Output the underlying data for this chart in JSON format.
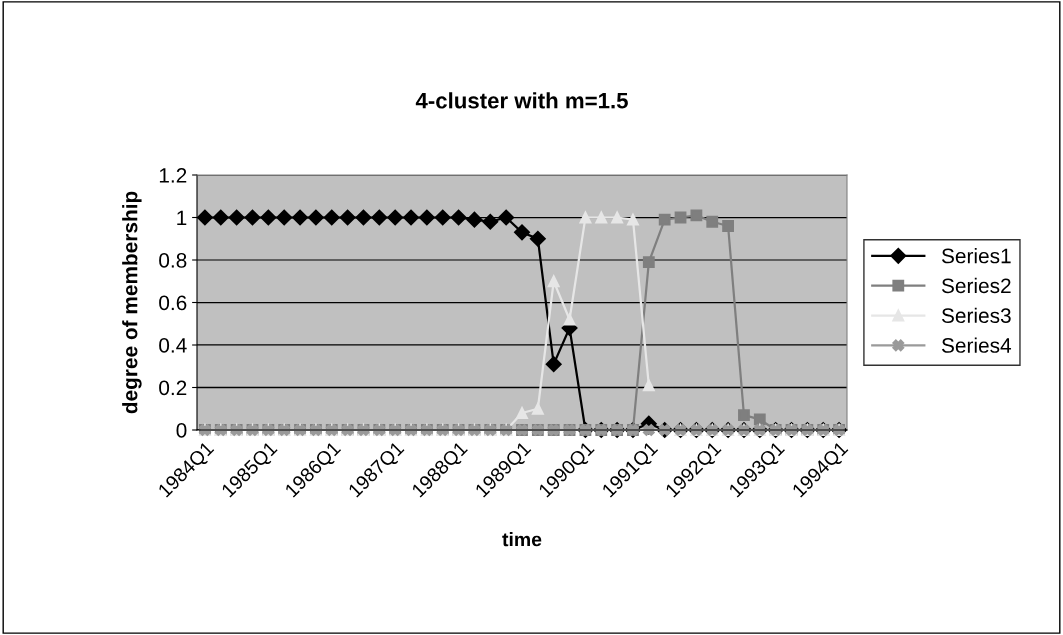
{
  "chart_data": {
    "type": "line",
    "title": "4-cluster with m=1.5",
    "xlabel": "time",
    "ylabel": "degree of membership",
    "categories": [
      "1984Q1",
      null,
      null,
      null,
      "1985Q1",
      null,
      null,
      null,
      "1986Q1",
      null,
      null,
      null,
      "1987Q1",
      null,
      null,
      null,
      "1988Q1",
      null,
      null,
      null,
      "1989Q1",
      null,
      null,
      null,
      "1990Q1",
      null,
      null,
      null,
      "1991Q1",
      null,
      null,
      null,
      "1992Q1",
      null,
      null,
      null,
      "1993Q1",
      null,
      null,
      null,
      "1994Q1"
    ],
    "ylim": [
      0,
      1.2
    ],
    "yticks": [
      0,
      0.2,
      0.4,
      0.6,
      0.8,
      1,
      1.2
    ],
    "grid": "y",
    "legend": "right",
    "series": [
      {
        "name": "Series1",
        "color": "#000000",
        "marker": "diamond",
        "values": [
          1,
          1,
          1,
          1,
          1,
          1,
          1,
          1,
          1,
          1,
          1,
          1,
          1,
          1,
          1,
          1,
          1,
          0.99,
          0.98,
          1,
          0.93,
          0.9,
          0.31,
          0.48,
          0,
          0,
          0,
          0,
          0.03,
          0,
          0,
          0,
          0,
          0,
          0,
          0,
          0,
          0,
          0,
          0,
          0
        ]
      },
      {
        "name": "Series2",
        "color": "#7f7f7f",
        "marker": "square",
        "values": [
          0,
          0,
          0,
          0,
          0,
          0,
          0,
          0,
          0,
          0,
          0,
          0,
          0,
          0,
          0,
          0,
          0,
          0,
          0,
          0,
          0,
          0,
          0,
          0,
          0,
          0,
          0,
          0,
          0.79,
          0.99,
          1,
          1.01,
          0.98,
          0.96,
          0.07,
          0.05,
          0,
          0,
          0,
          0,
          0
        ]
      },
      {
        "name": "Series3",
        "color": "#e6e6e6",
        "marker": "triangle",
        "values": [
          0,
          0,
          0,
          0,
          0,
          0,
          0,
          0,
          0,
          0,
          0,
          0,
          0,
          0,
          0,
          0,
          0,
          0,
          0,
          0,
          0.08,
          0.1,
          0.7,
          0.52,
          1,
          1,
          1,
          0.99,
          0.21,
          null,
          0,
          0,
          0,
          0,
          0,
          0,
          0,
          0,
          0,
          0,
          0
        ]
      },
      {
        "name": "Series4",
        "color": "#9a9a9a",
        "marker": "cross",
        "values": [
          0,
          0,
          0,
          0,
          0,
          0,
          0,
          0,
          0,
          0,
          0,
          0,
          0,
          0,
          0,
          0,
          0,
          0,
          0,
          0,
          0,
          0,
          0,
          0,
          0,
          0,
          0,
          0,
          0,
          0,
          0,
          0,
          0,
          0,
          0,
          0,
          0,
          0,
          0,
          0,
          0
        ]
      }
    ]
  }
}
